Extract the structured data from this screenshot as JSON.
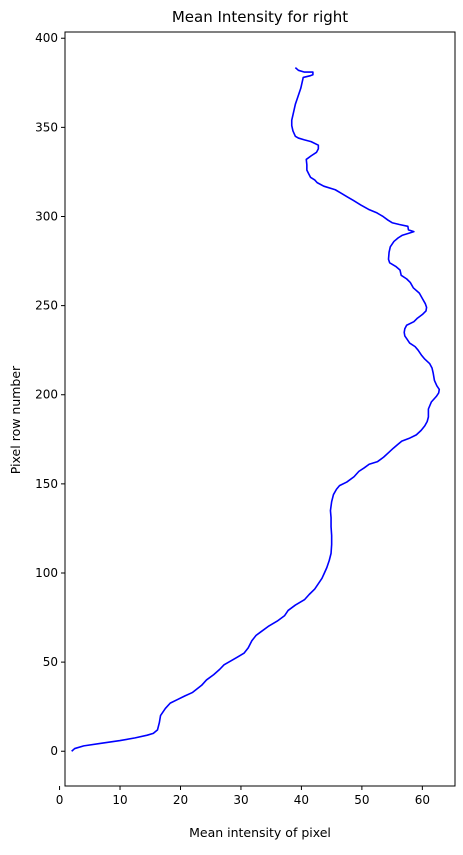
{
  "chart_data": {
    "type": "line",
    "title": "Mean Intensity for right",
    "xlabel": "Mean intensity of pixel",
    "ylabel": "Pixel row number",
    "xlim": [
      0.9,
      65.4
    ],
    "ylim": [
      -19.5,
      403.5
    ],
    "xticks": [
      0,
      10,
      20,
      30,
      40,
      50,
      60
    ],
    "yticks": [
      0,
      50,
      100,
      150,
      200,
      250,
      300,
      350,
      400
    ],
    "grid": false,
    "series": [
      {
        "color": "#0000ff",
        "points": [
          [
            2,
            0
          ],
          [
            2.5,
            1.5
          ],
          [
            4,
            3
          ],
          [
            7,
            4.5
          ],
          [
            10,
            6
          ],
          [
            12.5,
            7.5
          ],
          [
            14.5,
            9
          ],
          [
            15.5,
            10
          ],
          [
            16.2,
            12
          ],
          [
            16.5,
            16
          ],
          [
            16.7,
            20
          ],
          [
            17.5,
            24
          ],
          [
            18.3,
            27
          ],
          [
            19.5,
            29
          ],
          [
            20.7,
            31
          ],
          [
            22,
            33
          ],
          [
            23.5,
            37
          ],
          [
            24.3,
            40
          ],
          [
            25.5,
            43
          ],
          [
            26.5,
            46
          ],
          [
            27.2,
            48.5
          ],
          [
            28.5,
            51
          ],
          [
            29.5,
            53
          ],
          [
            30.5,
            55
          ],
          [
            31.2,
            58
          ],
          [
            31.8,
            62
          ],
          [
            32.5,
            65
          ],
          [
            33.3,
            67
          ],
          [
            34.5,
            70
          ],
          [
            36,
            73
          ],
          [
            37.2,
            76
          ],
          [
            37.8,
            79
          ],
          [
            39,
            82
          ],
          [
            40.5,
            85
          ],
          [
            41.3,
            88
          ],
          [
            42.2,
            91
          ],
          [
            42.8,
            94
          ],
          [
            43.4,
            97
          ],
          [
            43.8,
            100
          ],
          [
            44.2,
            103
          ],
          [
            44.6,
            107
          ],
          [
            44.9,
            111
          ],
          [
            45,
            116
          ],
          [
            45,
            121
          ],
          [
            44.9,
            126
          ],
          [
            44.9,
            131
          ],
          [
            44.8,
            135
          ],
          [
            45,
            140
          ],
          [
            45.3,
            144
          ],
          [
            45.8,
            147
          ],
          [
            46.3,
            149
          ],
          [
            47.5,
            151
          ],
          [
            48.7,
            154
          ],
          [
            49.5,
            157
          ],
          [
            50.4,
            159
          ],
          [
            51.2,
            161
          ],
          [
            52.6,
            162.5
          ],
          [
            53.6,
            165
          ],
          [
            54.4,
            167.5
          ],
          [
            55.2,
            170
          ],
          [
            55.9,
            172
          ],
          [
            56.6,
            174
          ],
          [
            57.8,
            175.5
          ],
          [
            59,
            177.5
          ],
          [
            59.8,
            180
          ],
          [
            60.4,
            182.5
          ],
          [
            60.8,
            185
          ],
          [
            61,
            187.5
          ],
          [
            61,
            192
          ],
          [
            61.5,
            196
          ],
          [
            62.3,
            199
          ],
          [
            62.7,
            201
          ],
          [
            62.8,
            203
          ],
          [
            62.4,
            205
          ],
          [
            62,
            208
          ],
          [
            61.8,
            212
          ],
          [
            61.6,
            215
          ],
          [
            61.2,
            217.5
          ],
          [
            60.4,
            220
          ],
          [
            59.9,
            222
          ],
          [
            59.3,
            225
          ],
          [
            58.8,
            227
          ],
          [
            57.9,
            229
          ],
          [
            57.5,
            231
          ],
          [
            57.1,
            233
          ],
          [
            57,
            235
          ],
          [
            57.1,
            237
          ],
          [
            57.4,
            239
          ],
          [
            58.6,
            241
          ],
          [
            59.2,
            243
          ],
          [
            60,
            245
          ],
          [
            60.6,
            247
          ],
          [
            60.7,
            249
          ],
          [
            60.5,
            251
          ],
          [
            60,
            254
          ],
          [
            59.5,
            257
          ],
          [
            58.5,
            260
          ],
          [
            58,
            263
          ],
          [
            57.4,
            265
          ],
          [
            56.5,
            267
          ],
          [
            56.3,
            270
          ],
          [
            55.6,
            272
          ],
          [
            54.6,
            274
          ],
          [
            54.4,
            276
          ],
          [
            54.5,
            280
          ],
          [
            54.7,
            283
          ],
          [
            55.3,
            286
          ],
          [
            56,
            288
          ],
          [
            56.7,
            289.5
          ],
          [
            57.7,
            290.5
          ],
          [
            58.6,
            291.5
          ],
          [
            57.7,
            292.5
          ],
          [
            57.6,
            294.5
          ],
          [
            56.2,
            295.5
          ],
          [
            55,
            296.5
          ],
          [
            54.3,
            298
          ],
          [
            53.5,
            300
          ],
          [
            52.5,
            302
          ],
          [
            51.1,
            304
          ],
          [
            49.8,
            306.5
          ],
          [
            48.6,
            309
          ],
          [
            47.6,
            311
          ],
          [
            46.6,
            313
          ],
          [
            45.6,
            315
          ],
          [
            43.7,
            317
          ],
          [
            42.6,
            319
          ],
          [
            42.2,
            320.5
          ],
          [
            41.5,
            322
          ],
          [
            41.2,
            324
          ],
          [
            40.9,
            326
          ],
          [
            40.9,
            329
          ],
          [
            40.8,
            332
          ],
          [
            41.6,
            334
          ],
          [
            42.5,
            336
          ],
          [
            42.8,
            338
          ],
          [
            42.8,
            340
          ],
          [
            41.6,
            342
          ],
          [
            40.5,
            343
          ],
          [
            39.5,
            344
          ],
          [
            39,
            345
          ],
          [
            38.6,
            348
          ],
          [
            38.4,
            351
          ],
          [
            38.4,
            354
          ],
          [
            38.6,
            357
          ],
          [
            38.8,
            360
          ],
          [
            39,
            363
          ],
          [
            39.3,
            366
          ],
          [
            39.6,
            369
          ],
          [
            39.9,
            372
          ],
          [
            40.1,
            375
          ],
          [
            40.3,
            378
          ],
          [
            41.5,
            379
          ],
          [
            41.9,
            379.5
          ],
          [
            41.9,
            381
          ],
          [
            40.5,
            381
          ],
          [
            39.5,
            382
          ],
          [
            39,
            383.5
          ]
        ]
      }
    ]
  }
}
